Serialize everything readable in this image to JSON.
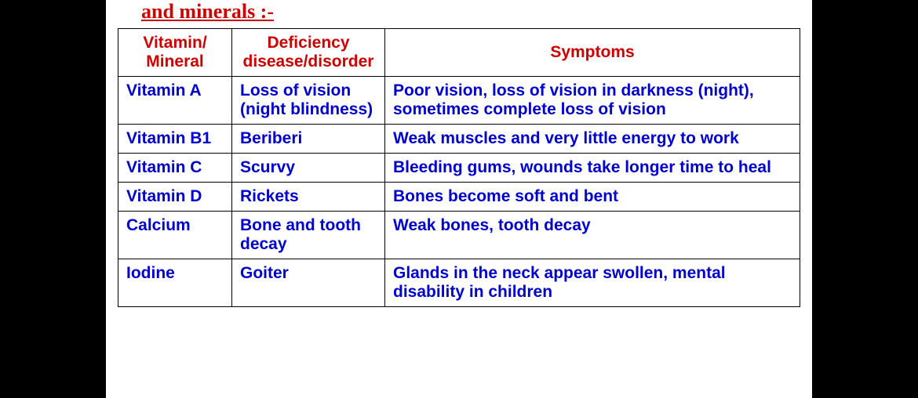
{
  "title_fragment": "and minerals :-",
  "table": {
    "columns": [
      "Vitamin/ Mineral",
      "Deficiency disease/disorder",
      "Symptoms"
    ],
    "rows": [
      [
        "Vitamin A",
        "Loss of vision (night blindness)",
        "Poor vision, loss of vision in darkness (night), sometimes complete loss of vision"
      ],
      [
        "Vitamin B1",
        "Beriberi",
        "Weak muscles and very little energy to work"
      ],
      [
        "Vitamin C",
        "Scurvy",
        "Bleeding gums, wounds take longer time to heal"
      ],
      [
        "Vitamin D",
        "Rickets",
        "Bones become soft and bent"
      ],
      [
        "Calcium",
        "Bone and tooth decay",
        "Weak bones, tooth decay"
      ],
      [
        "Iodine",
        "Goiter",
        "Glands in the neck appear swollen, mental disability in children"
      ]
    ]
  },
  "colors": {
    "header_text": "#cc0000",
    "cell_text": "#0000cc",
    "border": "#000000",
    "background": "#ffffff",
    "outer_background": "#000000"
  }
}
